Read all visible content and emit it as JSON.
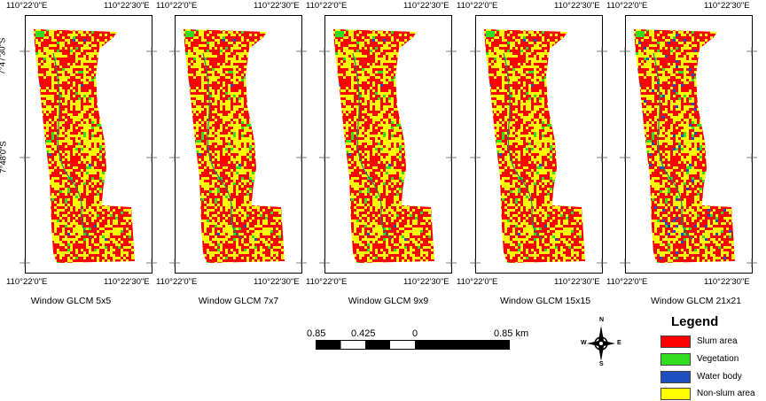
{
  "coords": {
    "lon_left": "110°22'0\"E",
    "lon_right": "110°22'30\"E",
    "lat_top": "7°47'30\"S",
    "lat_mid": "7°48'0\"S"
  },
  "panels": [
    {
      "caption": "Window GLCM 5x5"
    },
    {
      "caption": "Window GLCM 7x7"
    },
    {
      "caption": "Window GLCM 9x9"
    },
    {
      "caption": "Window GLCM 15x15"
    },
    {
      "caption": "Window GLCM 21x21"
    }
  ],
  "scale_bar": {
    "labels": [
      "0.85",
      "0.425",
      "0",
      "0.85 km"
    ]
  },
  "north_arrow": {
    "n": "N",
    "s": "S",
    "e": "E",
    "w": "W"
  },
  "legend": {
    "title": "Legend",
    "items": [
      {
        "label": "Slum area",
        "color": "#ff0000"
      },
      {
        "label": "Vegetation",
        "color": "#33dd22"
      },
      {
        "label": "Water body",
        "color": "#1f4fbf"
      },
      {
        "label": "Non-slum area",
        "color": "#ffff00"
      }
    ]
  }
}
